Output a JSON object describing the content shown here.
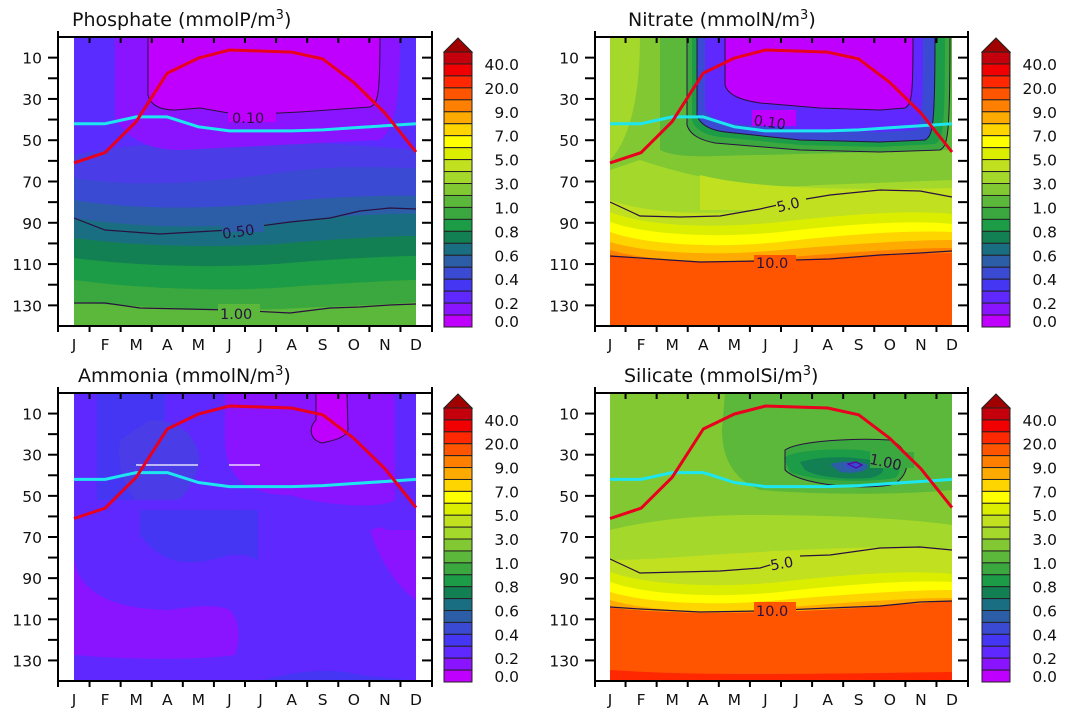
{
  "chart_data": {
    "type": "heatmap",
    "layout": "2x2 panels",
    "x_tick_labels": [
      "J",
      "F",
      "M",
      "A",
      "M",
      "J",
      "J",
      "A",
      "S",
      "O",
      "N",
      "D"
    ],
    "y_tick_labels": [
      "10",
      "30",
      "50",
      "70",
      "90",
      "110",
      "130"
    ],
    "y_ticks": [
      10,
      30,
      50,
      70,
      90,
      110,
      130
    ],
    "ylim": [
      140,
      0
    ],
    "colorbar": {
      "labels": [
        "40.0",
        "20.0",
        "9.0",
        "7.0",
        "5.0",
        "3.0",
        "1.0",
        "0.8",
        "0.6",
        "0.4",
        "0.2",
        "0.0"
      ],
      "extend": "max",
      "colors": [
        "#a00000",
        "#c4000c",
        "#f00000",
        "#ff2800",
        "#ff5500",
        "#ff8000",
        "#ffaa00",
        "#ffd500",
        "#ffff00",
        "#dcee00",
        "#c0e020",
        "#a4d82a",
        "#82c832",
        "#5cb83a",
        "#3aa83e",
        "#1c9c46",
        "#128052",
        "#1a6e82",
        "#2c5ea8",
        "#3a4ad2",
        "#4436f2",
        "#5e28ff",
        "#8a14ff",
        "#c000ff"
      ]
    },
    "lines": {
      "red": {
        "color": "#e8001e",
        "depth": [
          61,
          56,
          41,
          17.5,
          10.2,
          6.3,
          6.8,
          7.3,
          10.6,
          22,
          36.8,
          55.7
        ]
      },
      "cyan": {
        "color": "#1ee6f0",
        "depth": [
          42,
          42,
          38.7,
          38.7,
          43.5,
          45.5,
          45.5,
          45.5,
          45,
          44,
          43,
          42
        ]
      }
    },
    "panels": [
      {
        "title": "Phosphate (mmolP/m",
        "title_sup": "3",
        "title_end": ")",
        "contour_labels": [
          "0.10",
          "0.50",
          "1.00"
        ]
      },
      {
        "title": "Nitrate (mmolN/m",
        "title_sup": "3",
        "title_end": ")",
        "contour_labels": [
          "0.10",
          "5.0",
          "10.0"
        ]
      },
      {
        "title": "Ammonia (mmolN/m",
        "title_sup": "3",
        "title_end": ")",
        "contour_labels": []
      },
      {
        "title": "Silicate (mmolSi/m",
        "title_sup": "3",
        "title_end": ")",
        "contour_labels": [
          "1.00",
          "5.0",
          "10.0"
        ]
      }
    ]
  }
}
